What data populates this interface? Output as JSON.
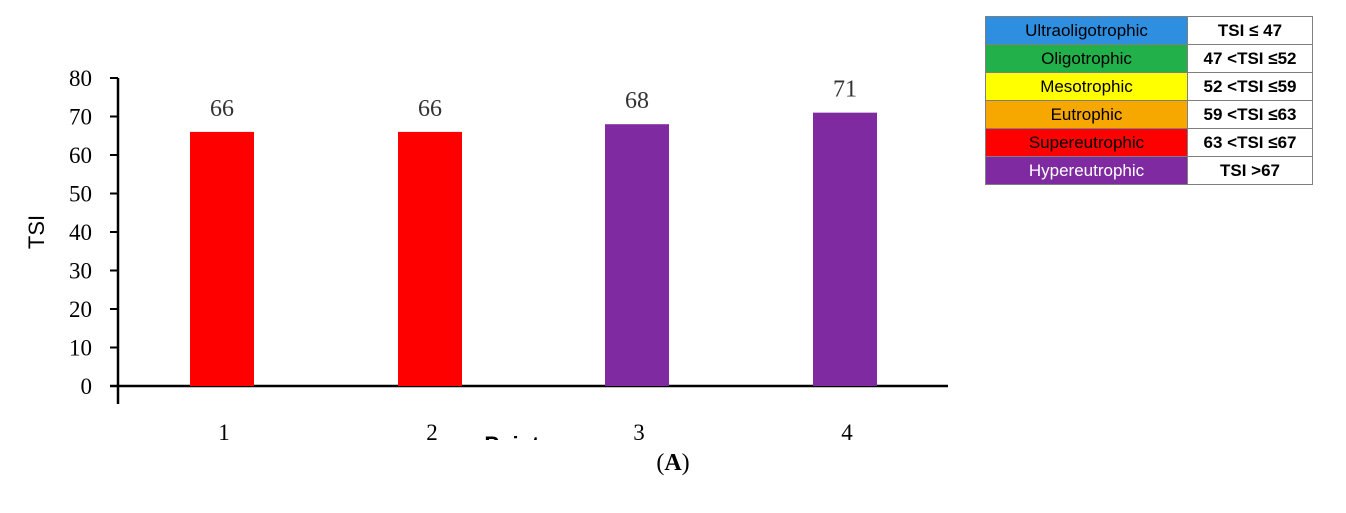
{
  "chart_data": {
    "type": "bar",
    "categories": [
      "1",
      "2",
      "3",
      "4"
    ],
    "values": [
      66,
      66,
      68,
      71
    ],
    "data_labels": [
      "66",
      "66",
      "68",
      "71"
    ],
    "bar_colors": [
      "#ff0000",
      "#ff0000",
      "#7f2aa0",
      "#7f2aa0"
    ],
    "xlabel": "Points",
    "ylabel": "TSI",
    "ylim": [
      0,
      80
    ],
    "yticks": [
      0,
      10,
      20,
      30,
      40,
      50,
      60,
      70,
      80
    ],
    "grid": false,
    "legend_placement": "top-right"
  },
  "legend": {
    "rows": [
      {
        "class": "Ultraoligotrophic",
        "range": "TSI ≤ 47",
        "color": "#2e8fe0",
        "text_color": "#000000"
      },
      {
        "class": "Oligotrophic",
        "range": "47 <TSI ≤52",
        "color": "#22b04a",
        "text_color": "#000000"
      },
      {
        "class": "Mesotrophic",
        "range": "52 <TSI ≤59",
        "color": "#ffff00",
        "text_color": "#000000"
      },
      {
        "class": "Eutrophic",
        "range": "59 <TSI ≤63",
        "color": "#f7a800",
        "text_color": "#000000"
      },
      {
        "class": "Supereutrophic",
        "range": "63 <TSI ≤67",
        "color": "#ff0000",
        "text_color": "#000000"
      },
      {
        "class": "Hypereutrophic",
        "range": "TSI >67",
        "color": "#7f2aa0",
        "text_color": "#ffffff"
      }
    ]
  },
  "panel_label": {
    "open": "(",
    "letter": "A",
    "close": ")"
  }
}
